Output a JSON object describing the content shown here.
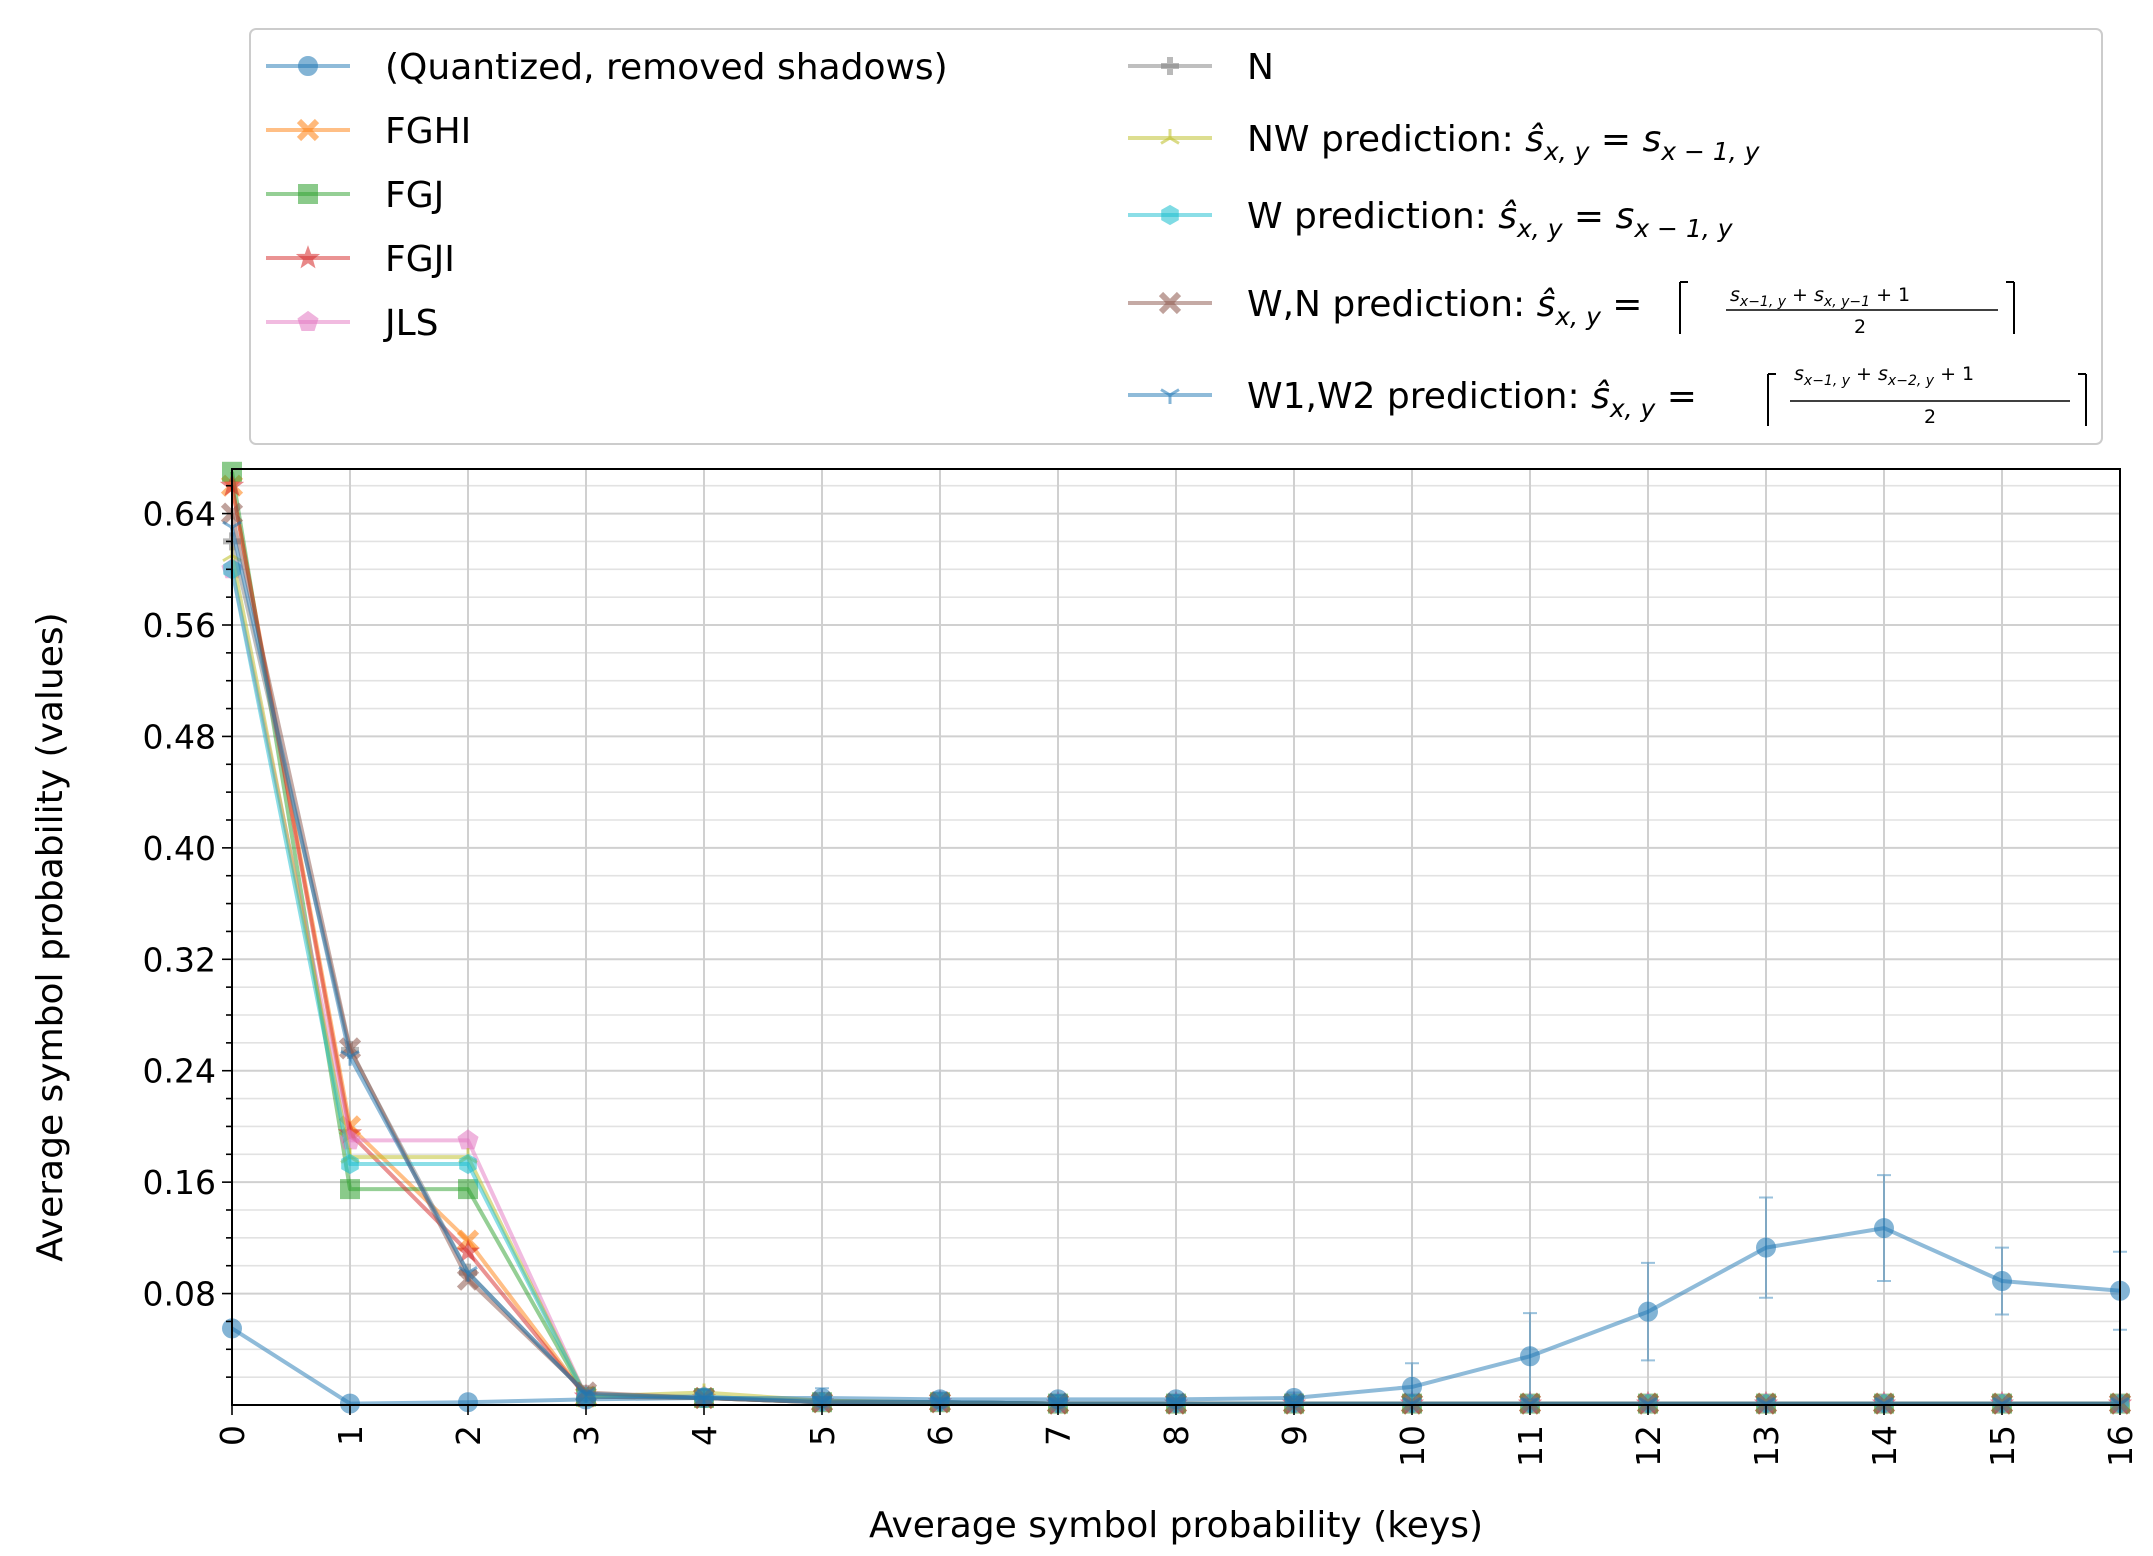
{
  "chart_data": {
    "type": "line",
    "xlabel": "Average symbol probability (keys)",
    "ylabel": "Average symbol probability (values)",
    "xlim": [
      0,
      16
    ],
    "ylim": [
      0,
      0.672
    ],
    "x": [
      0,
      1,
      2,
      3,
      4,
      5,
      6,
      7,
      8,
      9,
      10,
      11,
      12,
      13,
      14,
      15,
      16
    ],
    "x_ticks": [
      "0",
      "1",
      "2",
      "3",
      "4",
      "5",
      "6",
      "7",
      "8",
      "9",
      "10",
      "11",
      "12",
      "13",
      "14",
      "15",
      "16"
    ],
    "y_ticks": [
      0.08,
      0.16,
      0.24,
      0.32,
      0.4,
      0.48,
      0.56,
      0.64
    ],
    "y_tick_labels": [
      "0.08",
      "0.16",
      "0.24",
      "0.32",
      "0.40",
      "0.48",
      "0.56",
      "0.64"
    ],
    "grid": true,
    "legend_position": "top (above plot), two columns",
    "series": [
      {
        "name": "(Quantized, removed shadows)",
        "color": "#1f77b4",
        "marker": "circle",
        "values": [
          0.055,
          0.001,
          0.002,
          0.004,
          0.005,
          0.005,
          0.004,
          0.004,
          0.004,
          0.005,
          0.013,
          0.035,
          0.067,
          0.113,
          0.127,
          0.089,
          0.082
        ],
        "errors": [
          0,
          0,
          0,
          0,
          0.006,
          0.007,
          0.005,
          0.003,
          0.003,
          0.004,
          0.017,
          0.031,
          0.035,
          0.036,
          0.038,
          0.024,
          0.028
        ]
      },
      {
        "name": "FGHI",
        "color": "#ff7f0e",
        "marker": "x-filled",
        "values": [
          0.66,
          0.2,
          0.118,
          0.006,
          0.005,
          0.002,
          0.002,
          0.001,
          0.001,
          0.001,
          0.001,
          0.001,
          0.001,
          0.001,
          0.001,
          0.001,
          0.001
        ]
      },
      {
        "name": "FGJ",
        "color": "#2ca02c",
        "marker": "square",
        "values": [
          0.67,
          0.155,
          0.155,
          0.006,
          0.005,
          0.002,
          0.002,
          0.001,
          0.001,
          0.001,
          0.001,
          0.001,
          0.001,
          0.001,
          0.001,
          0.001,
          0.001
        ]
      },
      {
        "name": "FGJI",
        "color": "#d62728",
        "marker": "star",
        "values": [
          0.66,
          0.195,
          0.11,
          0.006,
          0.005,
          0.002,
          0.002,
          0.001,
          0.001,
          0.001,
          0.001,
          0.001,
          0.001,
          0.001,
          0.001,
          0.001,
          0.001
        ]
      },
      {
        "name": "JLS",
        "color": "#e377c2",
        "marker": "pentagon",
        "values": [
          0.6,
          0.19,
          0.19,
          0.006,
          0.006,
          0.002,
          0.002,
          0.001,
          0.001,
          0.001,
          0.001,
          0.001,
          0.001,
          0.001,
          0.001,
          0.001,
          0.001
        ]
      },
      {
        "name": "N",
        "color": "#7f7f7f",
        "marker": "plus-filled",
        "values": [
          0.62,
          0.255,
          0.095,
          0.008,
          0.005,
          0.003,
          0.002,
          0.001,
          0.001,
          0.001,
          0.001,
          0.001,
          0.001,
          0.001,
          0.001,
          0.001,
          0.001
        ]
      },
      {
        "name": "NW prediction",
        "color": "#bcbd22",
        "marker": "tri-up",
        "values": [
          0.61,
          0.178,
          0.178,
          0.006,
          0.009,
          0.003,
          0.002,
          0.001,
          0.001,
          0.001,
          0.001,
          0.001,
          0.001,
          0.001,
          0.001,
          0.001,
          0.001
        ]
      },
      {
        "name": "W prediction",
        "color": "#17becf",
        "marker": "hexagon",
        "values": [
          0.6,
          0.173,
          0.173,
          0.006,
          0.006,
          0.002,
          0.002,
          0.001,
          0.001,
          0.001,
          0.001,
          0.001,
          0.001,
          0.001,
          0.001,
          0.001,
          0.001
        ]
      },
      {
        "name": "W,N prediction",
        "color": "#8c564b",
        "marker": "x-filled",
        "values": [
          0.64,
          0.256,
          0.09,
          0.009,
          0.005,
          0.002,
          0.002,
          0.001,
          0.001,
          0.001,
          0.001,
          0.001,
          0.001,
          0.001,
          0.001,
          0.001,
          0.001
        ]
      },
      {
        "name": "W1,W2 prediction",
        "color": "#1f77b4",
        "marker": "tri-down",
        "values": [
          0.63,
          0.25,
          0.095,
          0.008,
          0.005,
          0.002,
          0.002,
          0.001,
          0.001,
          0.001,
          0.001,
          0.001,
          0.001,
          0.001,
          0.001,
          0.001,
          0.001
        ]
      }
    ]
  }
}
